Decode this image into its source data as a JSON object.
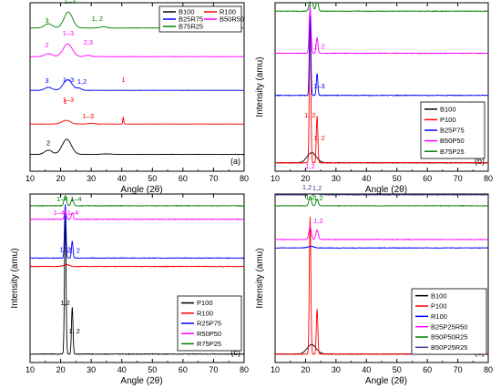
{
  "chart_data": [
    {
      "panel": "(a)",
      "type": "line",
      "xlabel": "Angle (2θ)",
      "ylabel": "",
      "xlim": [
        10,
        80
      ],
      "xticks": [
        "10",
        "20",
        "30",
        "40",
        "50",
        "60",
        "70",
        "80"
      ],
      "legend": {
        "placement": "top-right",
        "columns": 2
      },
      "series": [
        {
          "name": "B100",
          "color": "#000000",
          "values": [
            {
              "pk": [
                16,
                0.25,
                1.2
              ]
            },
            {
              "pk": [
                22,
                0.9,
                1.5
              ]
            },
            {
              "pk": [
                35,
                0.03,
                1.5
              ]
            }
          ]
        },
        {
          "name": "R100",
          "color": "#ff0000",
          "values": [
            {
              "pk": [
                21.8,
                0.22,
                1.4
              ]
            },
            {
              "pk": [
                30,
                0.05,
                1
              ]
            },
            {
              "pk": [
                40.5,
                0.42,
                0.15
              ]
            }
          ]
        },
        {
          "name": "B25R75",
          "color": "#0000ff",
          "values": [
            {
              "pk": [
                16,
                0.18,
                1.2
              ]
            },
            {
              "pk": [
                22.3,
                0.65,
                1.4
              ]
            },
            {
              "pk": [
                26,
                0.12,
                0.8
              ]
            }
          ]
        },
        {
          "name": "B50R50",
          "color": "#ff00ff",
          "values": [
            {
              "pk": [
                16,
                0.18,
                1.2
              ]
            },
            {
              "pk": [
                22.3,
                0.75,
                1.5
              ]
            },
            {
              "pk": [
                29,
                0.08,
                1
              ]
            }
          ]
        },
        {
          "name": "B75R25",
          "color": "#008000",
          "values": [
            {
              "pk": [
                16,
                0.25,
                1.3
              ]
            },
            {
              "pk": [
                22.5,
                0.95,
                1.4
              ]
            },
            {
              "pk": [
                34,
                0.08,
                1
              ]
            }
          ]
        }
      ],
      "annotations": [
        {
          "text": "2",
          "x": 16,
          "series": "B100"
        },
        {
          "text": "1",
          "x": 21.5,
          "series": "R100"
        },
        {
          "text": "1–3",
          "x": 22.5,
          "series": "R100"
        },
        {
          "text": "1–3",
          "x": 29,
          "series": "R100"
        },
        {
          "text": "1",
          "x": 40.5,
          "series": "R100"
        },
        {
          "text": "3",
          "x": 15.5,
          "series": "B25R75"
        },
        {
          "text": "1–3",
          "x": 22.5,
          "series": "B25R75"
        },
        {
          "text": "1,2",
          "x": 27,
          "series": "B25R75"
        },
        {
          "text": "2",
          "x": 15.5,
          "series": "B50R50"
        },
        {
          "text": "1–3",
          "x": 22.5,
          "series": "B50R50"
        },
        {
          "text": "2,3",
          "x": 29,
          "series": "B50R50"
        },
        {
          "text": "3",
          "x": 15.5,
          "series": "B75R25"
        },
        {
          "text": "1–3",
          "x": 23,
          "series": "B75R25"
        },
        {
          "text": "1, 2",
          "x": 32,
          "series": "B75R25"
        }
      ]
    },
    {
      "panel": "(b)",
      "type": "line",
      "xlabel": "Angle (2θ)",
      "ylabel": "Intensity (amu)",
      "xlim": [
        10,
        80
      ],
      "xticks": [
        "10",
        "20",
        "30",
        "40",
        "50",
        "60",
        "70",
        "80"
      ],
      "legend": {
        "placement": "middle-right",
        "columns": 1
      },
      "series": [
        {
          "name": "B100",
          "color": "#000000",
          "values": [
            {
              "pk": [
                22,
                0.3,
                1.5
              ]
            }
          ]
        },
        {
          "name": "P100",
          "color": "#ff0000",
          "values": [
            {
              "pk": [
                21.5,
                4.2,
                0.25
              ]
            },
            {
              "pk": [
                23.8,
                1.4,
                0.25
              ]
            }
          ]
        },
        {
          "name": "B25P75",
          "color": "#0000ff",
          "values": [
            {
              "pk": [
                21.5,
                2.4,
                0.25
              ]
            },
            {
              "pk": [
                23.8,
                0.65,
                0.25
              ]
            }
          ]
        },
        {
          "name": "B50P50",
          "color": "#ff00ff",
          "values": [
            {
              "pk": [
                21.5,
                1.4,
                0.3
              ]
            },
            {
              "pk": [
                23.8,
                0.45,
                0.3
              ]
            }
          ]
        },
        {
          "name": "B75P25",
          "color": "#008000",
          "values": [
            {
              "pk": [
                21.8,
                0.5,
                0.5
              ]
            },
            {
              "pk": [
                23.8,
                0.3,
                0.4
              ]
            }
          ]
        }
      ],
      "annotations": [
        {
          "text": "1, 2",
          "x": 21.5,
          "series": "P100"
        },
        {
          "text": "1, 2",
          "x": 24.5,
          "series": "P100"
        },
        {
          "text": "1–3",
          "x": 24.5,
          "series": "B25P75"
        },
        {
          "text": "1, 2",
          "x": 24.5,
          "series": "B50P50"
        },
        {
          "text": "1",
          "x": 21.5,
          "series": "B75P25"
        },
        {
          "text": "2",
          "x": 23.3,
          "series": "B75P25"
        },
        {
          "text": "1, 2",
          "x": 25.5,
          "series": "B75P25"
        }
      ]
    },
    {
      "panel": "(c)",
      "type": "line",
      "xlabel": "Angle (2θ)",
      "ylabel": "Intensity (amu)",
      "xlim": [
        10,
        80
      ],
      "xticks": [
        "10",
        "20",
        "30",
        "40",
        "50",
        "60",
        "70",
        "80"
      ],
      "legend": {
        "placement": "bottom-right",
        "columns": 1
      },
      "series": [
        {
          "name": "P100",
          "color": "#000000",
          "values": [
            {
              "pk": [
                21.5,
                4.1,
                0.25
              ]
            },
            {
              "pk": [
                23.8,
                1.4,
                0.25
              ]
            }
          ]
        },
        {
          "name": "R100",
          "color": "#ff0000",
          "values": [
            {
              "pk": [
                21.8,
                0.05,
                1
              ]
            }
          ]
        },
        {
          "name": "R25P75",
          "color": "#0000ff",
          "values": [
            {
              "pk": [
                21.5,
                1.6,
                0.25
              ]
            },
            {
              "pk": [
                23.8,
                0.5,
                0.25
              ]
            }
          ]
        },
        {
          "name": "R50P50",
          "color": "#ff00ff",
          "values": [
            {
              "pk": [
                21.5,
                0.25,
                0.3
              ]
            },
            {
              "pk": [
                23.8,
                0.2,
                0.3
              ]
            }
          ]
        },
        {
          "name": "R75P25",
          "color": "#008000",
          "values": [
            {
              "pk": [
                21.5,
                0.3,
                0.4
              ]
            },
            {
              "pk": [
                23.8,
                0.2,
                0.4
              ]
            }
          ]
        }
      ],
      "annotations": [
        {
          "text": "1,2",
          "x": 21.5,
          "series": "P100"
        },
        {
          "text": "1, 2",
          "x": 24.5,
          "series": "P100"
        },
        {
          "text": "1, 2",
          "x": 21.5,
          "series": "R25P75"
        },
        {
          "text": "1, 2",
          "x": 24.5,
          "series": "R25P75"
        },
        {
          "text": "1–4",
          "x": 19.5,
          "series": "R50P50"
        },
        {
          "text": "1–4",
          "x": 24,
          "series": "R50P50"
        },
        {
          "text": "1–4",
          "x": 20.5,
          "series": "R75P25"
        },
        {
          "text": "1–4",
          "x": 25,
          "series": "R75P25"
        }
      ]
    },
    {
      "panel": "(d)",
      "type": "line",
      "xlabel": "Angle (2θ)",
      "ylabel": "Intensity (amu)",
      "xlim": [
        10,
        80
      ],
      "xticks": [
        "10",
        "20",
        "30",
        "40",
        "50",
        "60",
        "70",
        "80"
      ],
      "legend": {
        "placement": "middle-right",
        "columns": 1
      },
      "series": [
        {
          "name": "B100",
          "color": "#000000",
          "values": [
            {
              "pk": [
                22,
                0.3,
                1.5
              ]
            }
          ]
        },
        {
          "name": "P100",
          "color": "#ff0000",
          "values": [
            {
              "pk": [
                21.5,
                4.3,
                0.25
              ]
            },
            {
              "pk": [
                23.8,
                1.4,
                0.25
              ]
            }
          ]
        },
        {
          "name": "R100",
          "color": "#0000ff",
          "values": [
            {
              "pk": [
                21.8,
                0.05,
                1
              ]
            }
          ]
        },
        {
          "name": "B25P25R50",
          "color": "#ff00ff",
          "values": [
            {
              "pk": [
                21.5,
                0.4,
                0.4
              ]
            },
            {
              "pk": [
                23.8,
                0.3,
                0.4
              ]
            }
          ]
        },
        {
          "name": "B50P50R25",
          "color": "#008000",
          "values": [
            {
              "pk": [
                21.5,
                0.3,
                0.4
              ]
            },
            {
              "pk": [
                23.8,
                0.2,
                0.4
              ]
            }
          ]
        },
        {
          "name": "B50P25R25",
          "color": "#3f3f8f",
          "values": [
            {
              "pk": [
                21.5,
                0.15,
                0.4
              ]
            },
            {
              "pk": [
                23.8,
                0.1,
                0.4
              ]
            }
          ]
        }
      ],
      "annotations": [
        {
          "text": "1,2",
          "x": 21.5,
          "series": "B25P25R50"
        },
        {
          "text": "1,2",
          "x": 24.2,
          "series": "B25P25R50"
        },
        {
          "text": "1,2",
          "x": 21.5,
          "series": "B50P50R25"
        },
        {
          "text": "1,2",
          "x": 24.2,
          "series": "B50P50R25"
        },
        {
          "text": "1,2",
          "x": 20.5,
          "series": "B50P25R25"
        },
        {
          "text": "1,2",
          "x": 23.8,
          "series": "B50P25R25"
        }
      ]
    }
  ]
}
